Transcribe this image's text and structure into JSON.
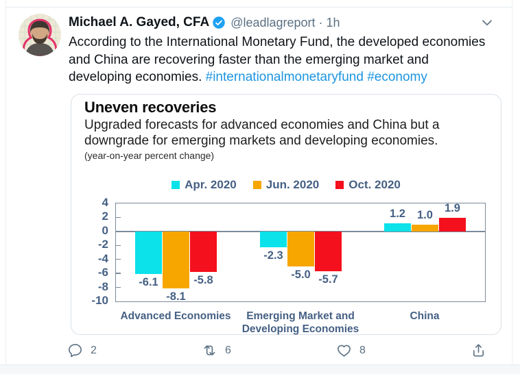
{
  "tweet": {
    "author": "Michael A. Gayed, CFA",
    "handle": "@leadlagreport",
    "separator": "·",
    "timestamp": "1h",
    "text": "According to the International Monetary Fund, the developed economies and China are recovering faster than the emerging market and developing economies.",
    "hashtags": [
      "#internationalmonetaryfund",
      "#economy"
    ],
    "actions": {
      "reply_count": "2",
      "retweet_count": "6",
      "like_count": "8"
    }
  },
  "chart_data": {
    "type": "bar",
    "title": "Uneven recoveries",
    "subtitle": "Upgraded forecasts for advanced economies and China but a downgrade for emerging markets and developing economies.",
    "unit_note": "(year-on-year percent change)",
    "categories": [
      "Advanced Economies",
      "Emerging Market and\nDeveloping Economies",
      "China"
    ],
    "series": [
      {
        "name": "Apr. 2020",
        "color": "#0BE2EA",
        "values": [
          -6.1,
          -2.3,
          1.2
        ]
      },
      {
        "name": "Jun. 2020",
        "color": "#F7A600",
        "values": [
          -8.1,
          -5.0,
          1.0
        ]
      },
      {
        "name": "Oct. 2020",
        "color": "#F4101C",
        "values": [
          -5.8,
          -5.7,
          1.9
        ]
      }
    ],
    "ylim": [
      -10,
      4
    ],
    "yticks": [
      4,
      2,
      0,
      -2,
      -4,
      -6,
      -8,
      -10
    ],
    "legend_position": "top",
    "grid": false
  },
  "colors": {
    "hashtag": "#1B95E0",
    "verified_badge": "#1DA1F2",
    "action_icons": "#5B7083",
    "axis_text": "#456084",
    "plot_border": "#7B8A99"
  }
}
